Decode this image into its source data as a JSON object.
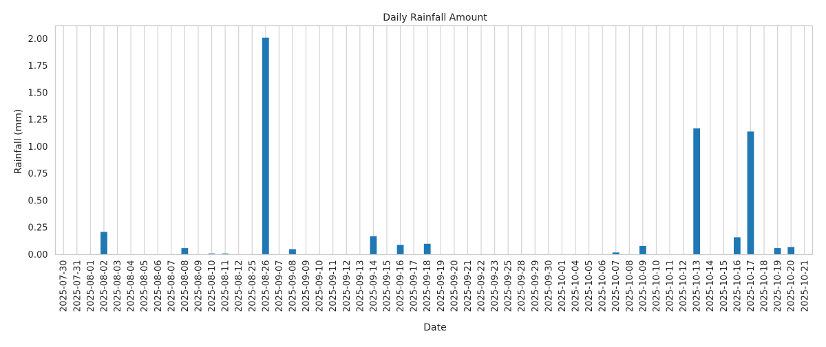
{
  "chart_data": {
    "type": "bar",
    "title": "Daily Rainfall Amount",
    "xlabel": "Date",
    "ylabel": "Rainfall (mm)",
    "ylim": [
      0,
      2.12
    ],
    "yticks": [
      "0.00",
      "0.25",
      "0.50",
      "0.75",
      "1.00",
      "1.25",
      "1.50",
      "1.75",
      "2.00"
    ],
    "grid": "x",
    "bar_color": "#1f77b4",
    "categories": [
      "2025-07-30",
      "2025-07-31",
      "2025-08-01",
      "2025-08-02",
      "2025-08-03",
      "2025-08-04",
      "2025-08-05",
      "2025-08-06",
      "2025-08-07",
      "2025-08-08",
      "2025-08-09",
      "2025-08-10",
      "2025-08-11",
      "2025-08-12",
      "2025-08-25",
      "2025-08-26",
      "2025-09-07",
      "2025-09-08",
      "2025-09-09",
      "2025-09-10",
      "2025-09-11",
      "2025-09-12",
      "2025-09-13",
      "2025-09-14",
      "2025-09-15",
      "2025-09-16",
      "2025-09-17",
      "2025-09-18",
      "2025-09-19",
      "2025-09-20",
      "2025-09-21",
      "2025-09-22",
      "2025-09-23",
      "2025-09-25",
      "2025-09-28",
      "2025-09-29",
      "2025-09-30",
      "2025-10-01",
      "2025-10-04",
      "2025-10-05",
      "2025-10-06",
      "2025-10-07",
      "2025-10-08",
      "2025-10-09",
      "2025-10-10",
      "2025-10-11",
      "2025-10-12",
      "2025-10-13",
      "2025-10-14",
      "2025-10-15",
      "2025-10-16",
      "2025-10-17",
      "2025-10-18",
      "2025-10-19",
      "2025-10-20",
      "2025-10-21"
    ],
    "values": [
      0,
      0,
      0,
      0.21,
      0,
      0,
      0,
      0,
      0,
      0.06,
      0,
      0.01,
      0.01,
      0,
      0,
      2.01,
      0,
      0.05,
      0,
      0,
      0,
      0,
      0,
      0.17,
      0,
      0.09,
      0,
      0.1,
      0,
      0,
      0,
      0,
      0,
      0,
      0,
      0,
      0,
      0,
      0,
      0,
      0,
      0.02,
      0,
      0.08,
      0,
      0,
      0,
      1.17,
      0,
      0,
      0.16,
      1.14,
      0,
      0.06,
      0.07,
      0
    ]
  }
}
